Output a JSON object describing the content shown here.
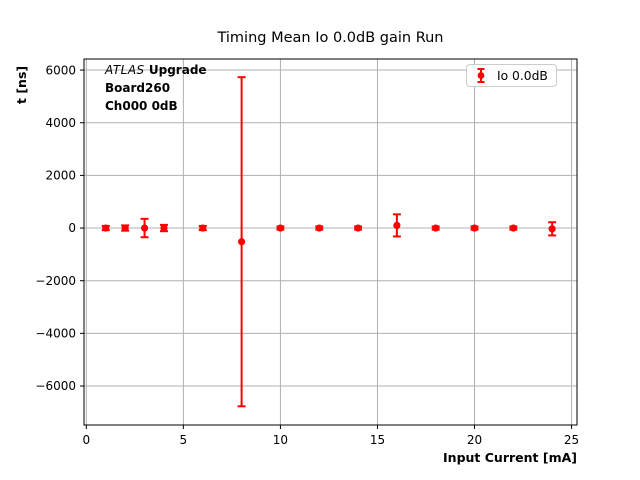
{
  "figure": {
    "title": "Timing Mean Io 0.0dB gain Run"
  },
  "axes": {
    "xlabel": "Input Current [mA]",
    "ylabel": "t [ns]"
  },
  "annotation": {
    "line1_italic": "ATLAS",
    "line1_bold": "Upgrade",
    "line2": "Board260",
    "line3": "Ch000 0dB"
  },
  "legend": {
    "label": "Io 0.0dB",
    "position": "upper right"
  },
  "chart_data": {
    "type": "scatter",
    "title": "Timing Mean Io 0.0dB gain Run",
    "xlabel": "Input Current [mA]",
    "ylabel": "t [ns]",
    "marker": "o",
    "series": [
      {
        "name": "Io 0.0dB",
        "color": "#ff0000",
        "x": [
          1,
          2,
          3,
          4,
          6,
          8,
          10,
          12,
          14,
          16,
          18,
          20,
          22,
          24
        ],
        "y": [
          0,
          0,
          0,
          0,
          0,
          -520,
          0,
          0,
          0,
          100,
          0,
          0,
          0,
          -30
        ],
        "yerr": [
          80,
          100,
          350,
          120,
          80,
          6250,
          60,
          60,
          60,
          420,
          60,
          60,
          60,
          250
        ]
      }
    ],
    "xlim": [
      -0.12,
      25.28
    ],
    "ylim": [
      -7480,
      6420
    ],
    "xticks": [
      0,
      5,
      10,
      15,
      20,
      25
    ],
    "yticks": [
      -6000,
      -4000,
      -2000,
      0,
      2000,
      4000,
      6000
    ],
    "grid": true,
    "grid_color": "#b0b0b0",
    "spine_color": "#000000",
    "legend_position": "upper right",
    "annotations": [
      "ATLAS Upgrade",
      "Board260",
      "Ch000 0dB"
    ]
  }
}
